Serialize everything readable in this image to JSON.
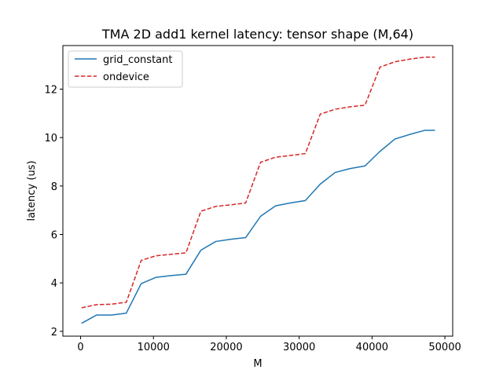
{
  "chart_data": {
    "type": "line",
    "title": "TMA 2D add1 kernel latency: tensor shape (M,64)",
    "xlabel": "M",
    "ylabel": "latency (us)",
    "xlim": [
      -2432,
      51072
    ],
    "ylim": [
      1.8,
      13.8
    ],
    "xticks": [
      0,
      10000,
      20000,
      30000,
      40000,
      50000
    ],
    "xtick_labels": [
      "0",
      "10000",
      "20000",
      "30000",
      "40000",
      "50000"
    ],
    "yticks": [
      2,
      4,
      6,
      8,
      10,
      12
    ],
    "ytick_labels": [
      "2",
      "4",
      "6",
      "8",
      "10",
      "12"
    ],
    "grid": false,
    "legend_position": "upper-left",
    "x": [
      128,
      2176,
      4224,
      6272,
      8320,
      10368,
      12416,
      14464,
      16512,
      18560,
      20608,
      22656,
      24704,
      26752,
      28800,
      30848,
      32896,
      34944,
      36992,
      39040,
      41088,
      43136,
      45184,
      47232,
      48640
    ],
    "series": [
      {
        "name": "grid_constant",
        "color": "#1f77b4",
        "dash": "solid",
        "values": [
          2.33,
          2.67,
          2.67,
          2.75,
          3.97,
          4.23,
          4.3,
          4.36,
          5.35,
          5.71,
          5.8,
          5.87,
          6.75,
          7.18,
          7.3,
          7.4,
          8.08,
          8.56,
          8.72,
          8.83,
          9.43,
          9.94,
          10.13,
          10.3,
          10.3
        ]
      },
      {
        "name": "ondevice",
        "color": "#d62728",
        "dash": "dashed",
        "values": [
          2.97,
          3.1,
          3.12,
          3.2,
          4.93,
          5.12,
          5.18,
          5.24,
          6.96,
          7.16,
          7.22,
          7.3,
          8.98,
          9.19,
          9.26,
          9.34,
          10.97,
          11.17,
          11.27,
          11.34,
          12.91,
          13.13,
          13.24,
          13.32,
          13.32
        ]
      }
    ]
  }
}
